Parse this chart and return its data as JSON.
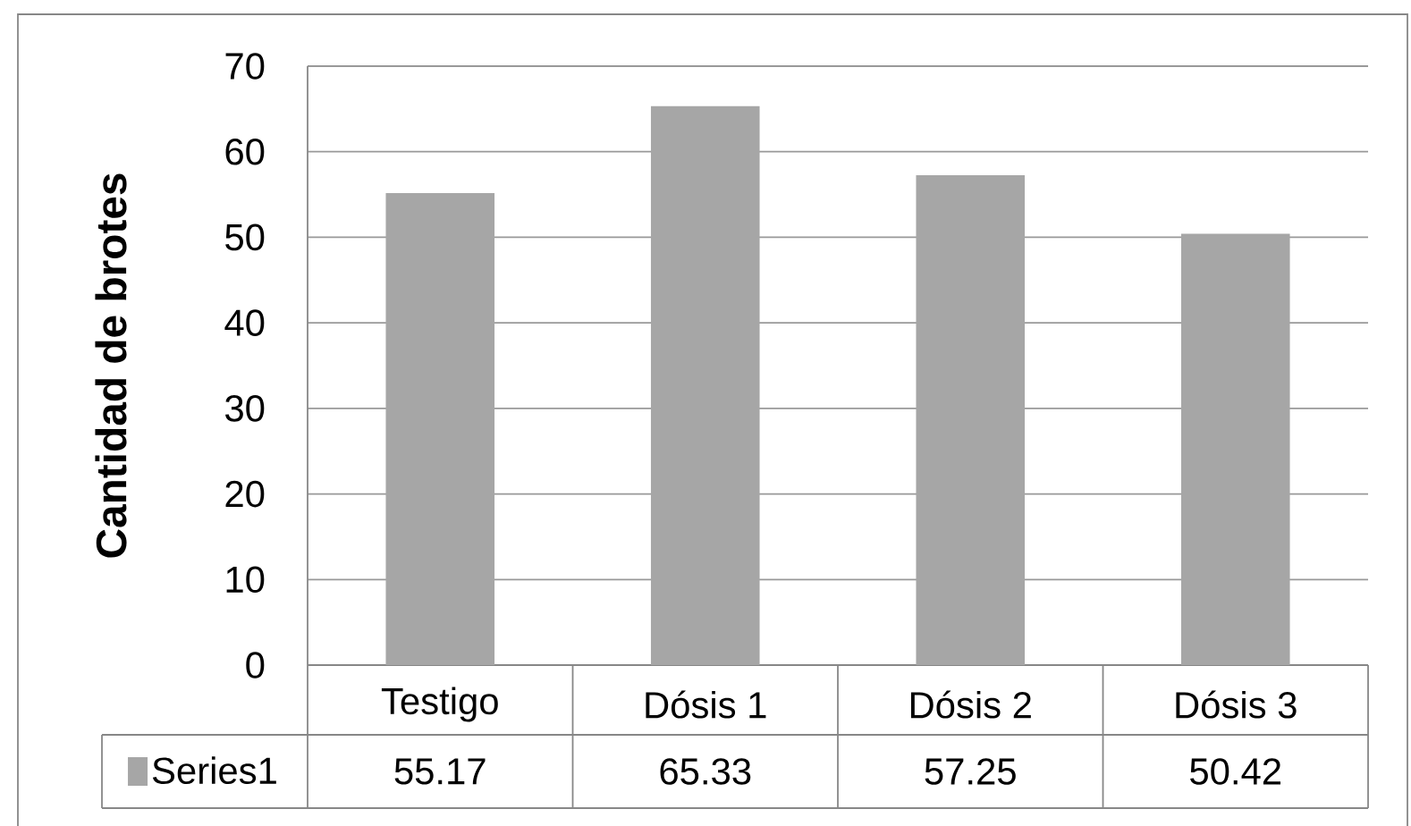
{
  "chart_data": {
    "type": "bar",
    "ylabel": "Cantidad de brotes",
    "categories": [
      "Testigo",
      "Dósis 1",
      "Dósis 2",
      "Dósis 3"
    ],
    "series": [
      {
        "name": "Series1",
        "color": "#a6a6a6",
        "values": [
          55.17,
          65.33,
          57.25,
          50.42
        ]
      }
    ],
    "ylim": [
      0,
      70
    ],
    "yticks": [
      0,
      10,
      20,
      30,
      40,
      50,
      60,
      70
    ],
    "grid": "y",
    "legend": "bottom left",
    "data_labels": true
  }
}
